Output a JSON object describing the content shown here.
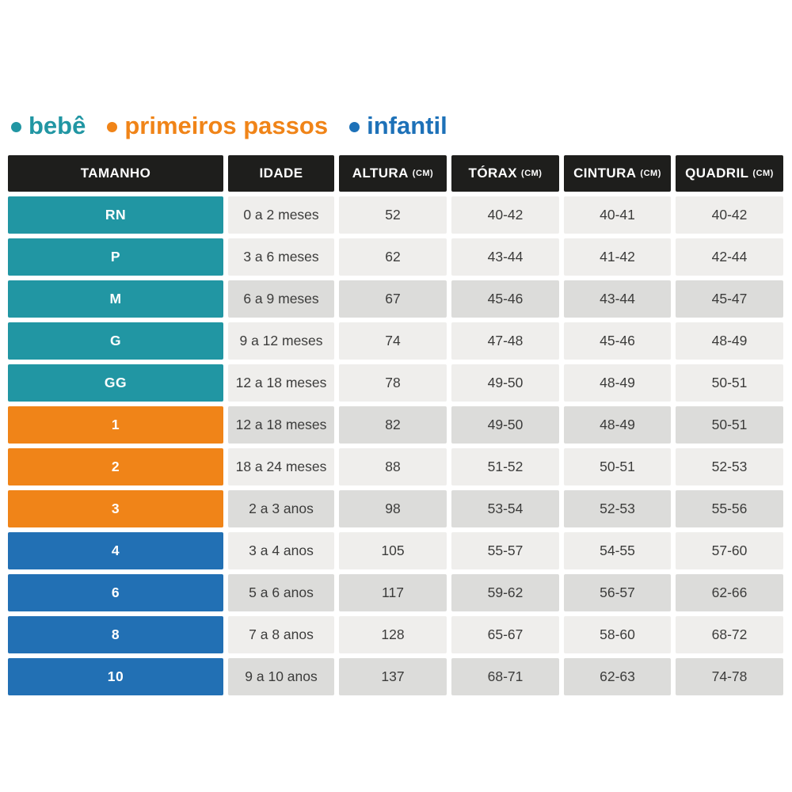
{
  "legend": {
    "items": [
      {
        "label": "bebê",
        "color": "#2196a3"
      },
      {
        "label": "primeiros passos",
        "color": "#f08418"
      },
      {
        "label": "infantil",
        "color": "#1d71b8"
      }
    ]
  },
  "colors": {
    "teal_bebe": "#2196a3",
    "orange_primeiros_passos": "#f08418",
    "blue_infantil": "#2270b4",
    "header_background": "#1e1e1c",
    "cell_light": "#efeeec",
    "cell_dark": "#dcdcda",
    "cell_text": "#3c3c3b"
  },
  "chart_data": {
    "type": "table",
    "headers": [
      {
        "label": "TAMANHO",
        "unit": ""
      },
      {
        "label": "IDADE",
        "unit": ""
      },
      {
        "label": "ALTURA",
        "unit": "(CM)"
      },
      {
        "label": "TÓRAX",
        "unit": "(CM)"
      },
      {
        "label": "CINTURA",
        "unit": "(CM)"
      },
      {
        "label": "QUADRIL",
        "unit": "(CM)"
      }
    ],
    "rows": [
      {
        "size": "RN",
        "group": "bebê",
        "idade": "0 a 2 meses",
        "altura": "52",
        "torax": "40-42",
        "cintura": "40-41",
        "quadril": "40-42"
      },
      {
        "size": "P",
        "group": "bebê",
        "idade": "3 a 6 meses",
        "altura": "62",
        "torax": "43-44",
        "cintura": "41-42",
        "quadril": "42-44"
      },
      {
        "size": "M",
        "group": "bebê",
        "idade": "6 a 9 meses",
        "altura": "67",
        "torax": "45-46",
        "cintura": "43-44",
        "quadril": "45-47"
      },
      {
        "size": "G",
        "group": "bebê",
        "idade": "9 a 12 meses",
        "altura": "74",
        "torax": "47-48",
        "cintura": "45-46",
        "quadril": "48-49"
      },
      {
        "size": "GG",
        "group": "bebê",
        "idade": "12 a 18 meses",
        "altura": "78",
        "torax": "49-50",
        "cintura": "48-49",
        "quadril": "50-51"
      },
      {
        "size": "1",
        "group": "primeiros passos",
        "idade": "12 a 18 meses",
        "altura": "82",
        "torax": "49-50",
        "cintura": "48-49",
        "quadril": "50-51"
      },
      {
        "size": "2",
        "group": "primeiros passos",
        "idade": "18 a 24 meses",
        "altura": "88",
        "torax": "51-52",
        "cintura": "50-51",
        "quadril": "52-53"
      },
      {
        "size": "3",
        "group": "primeiros passos",
        "idade": "2 a 3 anos",
        "altura": "98",
        "torax": "53-54",
        "cintura": "52-53",
        "quadril": "55-56"
      },
      {
        "size": "4",
        "group": "infantil",
        "idade": "3 a 4 anos",
        "altura": "105",
        "torax": "55-57",
        "cintura": "54-55",
        "quadril": "57-60"
      },
      {
        "size": "6",
        "group": "infantil",
        "idade": "5 a 6 anos",
        "altura": "117",
        "torax": "59-62",
        "cintura": "56-57",
        "quadril": "62-66"
      },
      {
        "size": "8",
        "group": "infantil",
        "idade": "7 a 8 anos",
        "altura": "128",
        "torax": "65-67",
        "cintura": "58-60",
        "quadril": "68-72"
      },
      {
        "size": "10",
        "group": "infantil",
        "idade": "9 a 10 anos",
        "altura": "137",
        "torax": "68-71",
        "cintura": "62-63",
        "quadril": "74-78"
      }
    ]
  }
}
